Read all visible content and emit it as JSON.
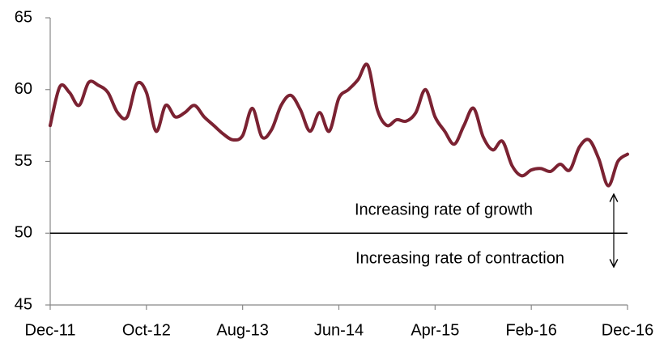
{
  "chart_data": {
    "type": "line",
    "categories": [
      "Dec-11",
      null,
      null,
      null,
      null,
      null,
      null,
      null,
      null,
      null,
      "Oct-12",
      null,
      null,
      null,
      null,
      null,
      null,
      null,
      null,
      null,
      "Aug-13",
      null,
      null,
      null,
      null,
      null,
      null,
      null,
      null,
      null,
      "Jun-14",
      null,
      null,
      null,
      null,
      null,
      null,
      null,
      null,
      null,
      "Apr-15",
      null,
      null,
      null,
      null,
      null,
      null,
      null,
      null,
      null,
      "Feb-16",
      null,
      null,
      null,
      null,
      null,
      null,
      null,
      null,
      null,
      "Dec-16"
    ],
    "series": [
      {
        "color": "#7b2232",
        "values": [
          57.5,
          60.2,
          59.8,
          58.9,
          60.5,
          60.3,
          59.8,
          58.4,
          58.1,
          60.4,
          59.8,
          57.1,
          58.9,
          58.1,
          58.4,
          58.9,
          58.1,
          57.5,
          56.9,
          56.5,
          56.8,
          58.7,
          56.7,
          57.2,
          58.9,
          59.6,
          58.6,
          57.1,
          58.4,
          57.1,
          59.4,
          60.0,
          60.7,
          61.7,
          58.6,
          57.5,
          57.9,
          57.8,
          58.4,
          60.0,
          58.1,
          57.1,
          56.2,
          57.5,
          58.7,
          56.7,
          55.8,
          56.4,
          54.7,
          54.0,
          54.4,
          54.5,
          54.3,
          54.8,
          54.4,
          56.0,
          56.5,
          55.2,
          53.3,
          55.0,
          55.5
        ]
      }
    ],
    "ylim": [
      45,
      65
    ],
    "yticks": [
      45,
      50,
      55,
      60,
      65
    ],
    "reference_line": 50,
    "annotations": [
      "Increasing rate of growth",
      "Increasing rate of contraction"
    ]
  }
}
